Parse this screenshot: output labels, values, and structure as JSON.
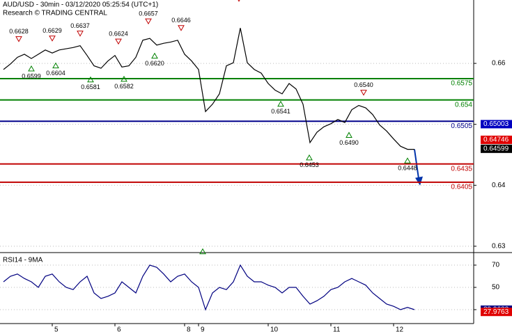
{
  "chart_data": [
    {
      "type": "line",
      "title": "AUD/USD - 30min - 03/12/2020 05:25:54 (UTC+1)",
      "subtitle": "Research © TRADING CENTRAL",
      "categories": [
        null,
        null,
        null,
        null,
        null,
        null,
        null,
        "5",
        null,
        null,
        null,
        null,
        null,
        null,
        null,
        null,
        "6",
        null,
        null,
        null,
        null,
        null,
        null,
        null,
        null,
        null,
        "8",
        null,
        "9",
        null,
        null,
        null,
        null,
        null,
        null,
        null,
        null,
        null,
        "10",
        null,
        null,
        null,
        null,
        null,
        null,
        null,
        null,
        "11",
        null,
        null,
        null,
        null,
        null,
        null,
        null,
        null,
        "12",
        null,
        null,
        null
      ],
      "series": [
        {
          "color": "#000000",
          "values": [
            0.659,
            0.6599,
            0.661,
            0.6615,
            0.6608,
            0.6615,
            0.6622,
            0.6617,
            0.6622,
            0.6624,
            0.6626,
            0.6629,
            0.6613,
            0.6596,
            0.6592,
            0.6604,
            0.6613,
            0.6594,
            0.6596,
            0.661,
            0.6638,
            0.6641,
            0.663,
            0.6633,
            0.6635,
            0.6638,
            0.6615,
            0.6604,
            0.659,
            0.6521,
            0.6533,
            0.655,
            0.6596,
            0.6601,
            0.6658,
            0.6601,
            0.659,
            0.6584,
            0.6567,
            0.6556,
            0.655,
            0.6567,
            0.6558,
            0.6533,
            0.647,
            0.6487,
            0.6496,
            0.6501,
            0.6508,
            0.6503,
            0.6524,
            0.6531,
            0.6527,
            0.6516,
            0.6499,
            0.6489,
            0.6476,
            0.6464,
            0.6459,
            0.6459
          ]
        }
      ],
      "ylim": [
        0.6293,
        0.6704
      ],
      "yticks": [
        0.63,
        0.64,
        0.65,
        0.66
      ],
      "grid": true,
      "levels": [
        {
          "value": 0.6575,
          "color": "#008000"
        },
        {
          "value": 0.654,
          "color": "#008000"
        },
        {
          "value": 0.6505,
          "color": "#00008b"
        },
        {
          "value": 0.6435,
          "color": "#c00000"
        },
        {
          "value": 0.6405,
          "color": "#c00000"
        }
      ],
      "pivots": [
        {
          "x": 2.2,
          "value": 0.6628,
          "kind": "high"
        },
        {
          "x": 7,
          "value": 0.6629,
          "kind": "high"
        },
        {
          "x": 11,
          "value": 0.6637,
          "kind": "high"
        },
        {
          "x": 16.5,
          "value": 0.6624,
          "kind": "high"
        },
        {
          "x": 20.8,
          "value": 0.6657,
          "kind": "high"
        },
        {
          "x": 25.5,
          "value": 0.6646,
          "kind": "high"
        },
        {
          "x": 33.8,
          "value": 0.6694,
          "kind": "high",
          "hidden": true
        },
        {
          "x": 51.7,
          "value": 0.654,
          "label": "0.6540",
          "kind": "high"
        },
        {
          "x": 4,
          "value": 0.6599,
          "kind": "low"
        },
        {
          "x": 7.5,
          "value": 0.6604,
          "kind": "low"
        },
        {
          "x": 12.5,
          "value": 0.6581,
          "kind": "low"
        },
        {
          "x": 17.3,
          "value": 0.6582,
          "kind": "low"
        },
        {
          "x": 21.7,
          "value": 0.662,
          "label": "0.6620",
          "kind": "low"
        },
        {
          "x": 28.6,
          "value": 0.6299,
          "kind": "low",
          "hidden": true
        },
        {
          "x": 39.8,
          "value": 0.6541,
          "kind": "low"
        },
        {
          "x": 43.9,
          "value": 0.6453,
          "kind": "low"
        },
        {
          "x": 49.6,
          "value": 0.649,
          "label": "0.6490",
          "kind": "low"
        },
        {
          "x": 58,
          "value": 0.6448,
          "kind": "low"
        }
      ],
      "markers": [
        {
          "value": 0.65003,
          "color": "#0000c0"
        },
        {
          "value": 0.64746,
          "color": "#e00000"
        },
        {
          "value": 0.64599,
          "color": "#000000"
        }
      ]
    },
    {
      "type": "line",
      "title": "RSI14 - 9MA",
      "series": [
        {
          "color": "#000080",
          "values": [
            55,
            60,
            62,
            58,
            55,
            50,
            60,
            62,
            55,
            50,
            48,
            55,
            60,
            45,
            40,
            42,
            45,
            55,
            50,
            45,
            60,
            70,
            68,
            62,
            55,
            60,
            62,
            55,
            50,
            30,
            45,
            50,
            48,
            55,
            70,
            60,
            55,
            55,
            52,
            50,
            45,
            50,
            50,
            42,
            35,
            38,
            42,
            48,
            50,
            55,
            58,
            55,
            52,
            45,
            40,
            35,
            33,
            30,
            32,
            30
          ]
        }
      ],
      "ylim": [
        17.5,
        80
      ],
      "yticks": [
        30,
        50,
        70
      ],
      "grid": true,
      "markers": [
        {
          "value": 29.9622,
          "color": "#000080"
        },
        {
          "value": 27.9763,
          "color": "#e00000"
        }
      ]
    }
  ]
}
